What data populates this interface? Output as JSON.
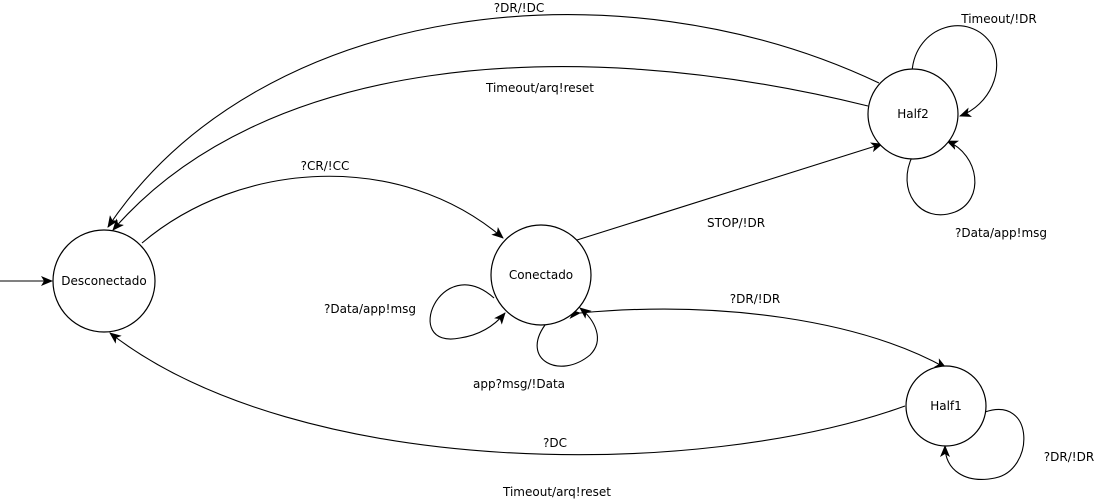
{
  "diagram": {
    "states": {
      "desconectado": "Desconectado",
      "conectado": "Conectado",
      "half1": "Half1",
      "half2": "Half2"
    },
    "transitions": {
      "cr_cc": "?CR/!CC",
      "dr_dc": "?DR/!DC",
      "timeout_reset_half2": "Timeout/arq!reset",
      "stop_dr": "STOP/!DR",
      "dr_dr_conectado_half1": "?DR/!DR",
      "dc": "?DC",
      "timeout_reset_half1": "Timeout/arq!reset",
      "data_app_msg_conectado": "?Data/app!msg",
      "app_msg_data": "app?msg/!Data",
      "timeout_dr_half2": "Timeout/!DR",
      "data_app_msg_half2": "?Data/app!msg",
      "dr_dr_half1": "?DR/!DR"
    }
  }
}
